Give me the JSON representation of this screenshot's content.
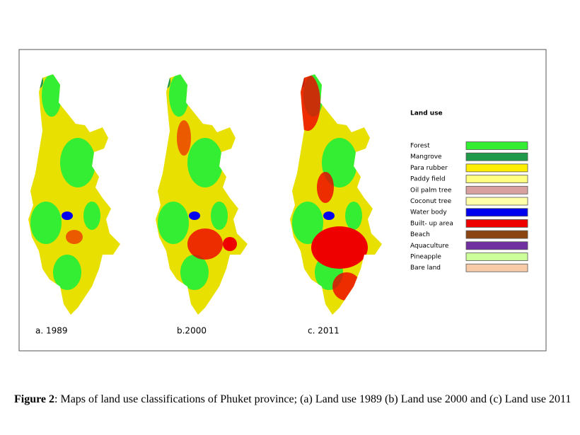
{
  "figure": {
    "panels": [
      {
        "label": "a. 1989"
      },
      {
        "label": "b.2000"
      },
      {
        "label": "c. 2011"
      }
    ]
  },
  "legend": {
    "title": "Land use",
    "items": [
      {
        "label": "Forest",
        "color": "#33ee33"
      },
      {
        "label": "Mangrove",
        "color": "#1f9a4a"
      },
      {
        "label": "Para rubber",
        "color": "#ffee00"
      },
      {
        "label": "Paddy field",
        "color": "#ffff80"
      },
      {
        "label": "Oil palm tree",
        "color": "#d9a0a0"
      },
      {
        "label": "Coconut tree",
        "color": "#ffffaa"
      },
      {
        "label": "Water body",
        "color": "#0000ee"
      },
      {
        "label": "Built- up area",
        "color": "#ee0000"
      },
      {
        "label": "Beach",
        "color": "#8b4513"
      },
      {
        "label": "Aquaculture",
        "color": "#7030a0"
      },
      {
        "label": "Pineapple",
        "color": "#ccff99"
      },
      {
        "label": "Bare land",
        "color": "#f8cba8"
      }
    ]
  },
  "caption": {
    "label": "Figure 2",
    "text": ":  Maps of land use classifications of Phuket province; (a) Land use 1989 (b) Land use 2000 and (c) Land use 2011"
  }
}
